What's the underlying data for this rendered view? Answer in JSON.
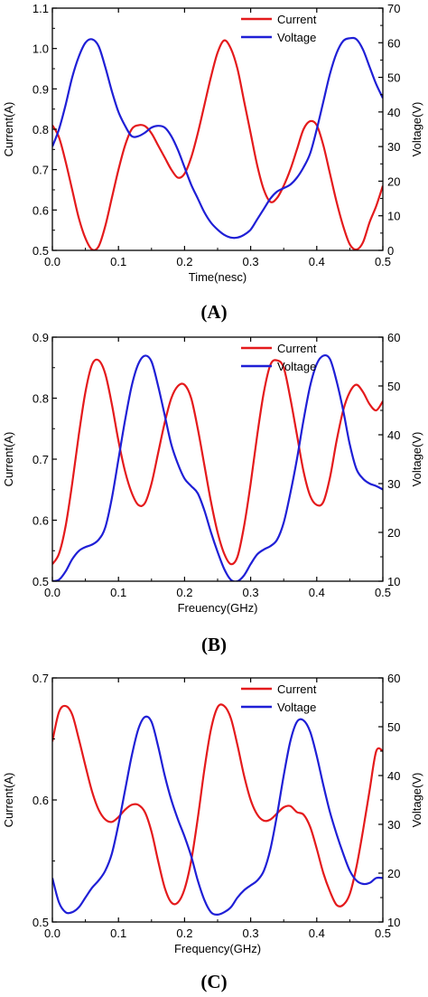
{
  "colors": {
    "current": "#e41a1c",
    "voltage": "#1f1fd6",
    "axis": "#000000"
  },
  "chart_data": [
    {
      "type": "line",
      "panel_label": "(A)",
      "xlabel": "Time(nesc)",
      "ylabel_left": "Current(A)",
      "ylabel_right": "Voltage(V)",
      "xlim": [
        0,
        0.5
      ],
      "ylim_left": [
        0.5,
        1.1
      ],
      "ylim_right": [
        0,
        70
      ],
      "x_ticks": [
        0.0,
        0.1,
        0.2,
        0.3,
        0.4,
        0.5
      ],
      "y_ticks_left": [
        0.5,
        0.6,
        0.7,
        0.8,
        0.9,
        1.0,
        1.1
      ],
      "y_ticks_right": [
        0,
        10,
        20,
        30,
        40,
        50,
        60,
        70
      ],
      "grid": false,
      "legend": "top-right",
      "series": [
        {
          "name": "Current",
          "axis": "left",
          "color": "#e41a1c",
          "x": [
            0.0,
            0.01,
            0.02,
            0.03,
            0.04,
            0.05,
            0.06,
            0.07,
            0.08,
            0.09,
            0.1,
            0.11,
            0.12,
            0.13,
            0.14,
            0.15,
            0.16,
            0.17,
            0.18,
            0.19,
            0.2,
            0.21,
            0.22,
            0.23,
            0.24,
            0.25,
            0.26,
            0.27,
            0.28,
            0.29,
            0.3,
            0.31,
            0.32,
            0.33,
            0.34,
            0.35,
            0.36,
            0.37,
            0.38,
            0.39,
            0.4,
            0.41,
            0.42,
            0.43,
            0.44,
            0.45,
            0.46,
            0.47,
            0.48,
            0.49,
            0.5
          ],
          "y": [
            0.81,
            0.78,
            0.72,
            0.65,
            0.58,
            0.53,
            0.502,
            0.51,
            0.56,
            0.63,
            0.7,
            0.76,
            0.8,
            0.81,
            0.808,
            0.79,
            0.76,
            0.73,
            0.7,
            0.68,
            0.69,
            0.73,
            0.79,
            0.86,
            0.93,
            0.99,
            1.02,
            1.0,
            0.95,
            0.87,
            0.79,
            0.71,
            0.65,
            0.62,
            0.63,
            0.66,
            0.7,
            0.75,
            0.8,
            0.82,
            0.81,
            0.76,
            0.69,
            0.62,
            0.56,
            0.515,
            0.502,
            0.52,
            0.57,
            0.61,
            0.66
          ]
        },
        {
          "name": "Voltage",
          "axis": "right",
          "color": "#1f1fd6",
          "x": [
            0.0,
            0.01,
            0.02,
            0.03,
            0.04,
            0.05,
            0.06,
            0.07,
            0.08,
            0.09,
            0.1,
            0.11,
            0.12,
            0.13,
            0.14,
            0.15,
            0.16,
            0.17,
            0.18,
            0.19,
            0.2,
            0.21,
            0.22,
            0.23,
            0.24,
            0.25,
            0.26,
            0.27,
            0.28,
            0.29,
            0.3,
            0.31,
            0.32,
            0.33,
            0.34,
            0.35,
            0.36,
            0.37,
            0.38,
            0.39,
            0.4,
            0.41,
            0.42,
            0.43,
            0.44,
            0.45,
            0.46,
            0.47,
            0.48,
            0.49,
            0.5
          ],
          "y": [
            30,
            35,
            42,
            50,
            56,
            60,
            61,
            59,
            53,
            46,
            40,
            36,
            33,
            33,
            34,
            35.5,
            36,
            35.5,
            33,
            29,
            24,
            19,
            15,
            11,
            8,
            6,
            4.5,
            3.7,
            3.7,
            4.5,
            6,
            9,
            12,
            15,
            17,
            18,
            19,
            21,
            24,
            28,
            35,
            43,
            51,
            57,
            60.5,
            61.3,
            61,
            58,
            53,
            48,
            44
          ]
        }
      ]
    },
    {
      "type": "line",
      "panel_label": "(B)",
      "xlabel": "Freuency(GHz)",
      "ylabel_left": "Current(A)",
      "ylabel_right": "Voltage(V)",
      "xlim": [
        0,
        0.5
      ],
      "ylim_left": [
        0.5,
        0.9
      ],
      "ylim_right": [
        10,
        60
      ],
      "x_ticks": [
        0.0,
        0.1,
        0.2,
        0.3,
        0.4,
        0.5
      ],
      "y_ticks_left": [
        0.5,
        0.6,
        0.7,
        0.8,
        0.9
      ],
      "y_ticks_right": [
        10,
        20,
        30,
        40,
        50,
        60
      ],
      "grid": false,
      "legend": "top-right",
      "series": [
        {
          "name": "Current",
          "axis": "left",
          "color": "#e41a1c",
          "x": [
            0.0,
            0.01,
            0.02,
            0.03,
            0.04,
            0.05,
            0.06,
            0.07,
            0.08,
            0.09,
            0.1,
            0.11,
            0.12,
            0.13,
            0.14,
            0.15,
            0.16,
            0.17,
            0.18,
            0.19,
            0.2,
            0.21,
            0.22,
            0.23,
            0.24,
            0.25,
            0.26,
            0.27,
            0.28,
            0.29,
            0.3,
            0.31,
            0.32,
            0.33,
            0.34,
            0.35,
            0.36,
            0.37,
            0.38,
            0.39,
            0.4,
            0.41,
            0.42,
            0.43,
            0.44,
            0.45,
            0.46,
            0.47,
            0.48,
            0.49,
            0.5
          ],
          "y": [
            0.528,
            0.545,
            0.59,
            0.66,
            0.74,
            0.81,
            0.855,
            0.862,
            0.84,
            0.79,
            0.73,
            0.68,
            0.645,
            0.625,
            0.628,
            0.66,
            0.71,
            0.76,
            0.8,
            0.82,
            0.822,
            0.8,
            0.75,
            0.69,
            0.63,
            0.58,
            0.545,
            0.528,
            0.54,
            0.59,
            0.66,
            0.74,
            0.81,
            0.855,
            0.862,
            0.85,
            0.8,
            0.74,
            0.68,
            0.64,
            0.625,
            0.63,
            0.67,
            0.73,
            0.78,
            0.81,
            0.822,
            0.81,
            0.79,
            0.78,
            0.795
          ]
        },
        {
          "name": "Voltage",
          "axis": "right",
          "color": "#1f1fd6",
          "x": [
            0.0,
            0.01,
            0.02,
            0.03,
            0.04,
            0.05,
            0.06,
            0.07,
            0.08,
            0.09,
            0.1,
            0.11,
            0.12,
            0.13,
            0.14,
            0.15,
            0.16,
            0.17,
            0.18,
            0.19,
            0.2,
            0.21,
            0.22,
            0.23,
            0.24,
            0.25,
            0.26,
            0.27,
            0.28,
            0.29,
            0.3,
            0.31,
            0.32,
            0.33,
            0.34,
            0.35,
            0.36,
            0.37,
            0.38,
            0.39,
            0.4,
            0.41,
            0.42,
            0.43,
            0.44,
            0.45,
            0.46,
            0.47,
            0.48,
            0.49,
            0.5
          ],
          "y": [
            10,
            10.3,
            12,
            14.5,
            16.2,
            17,
            17.5,
            18.5,
            21,
            27,
            35,
            43,
            50,
            54.5,
            56.2,
            55,
            50,
            44,
            38,
            34,
            31,
            29.5,
            28,
            24.5,
            20,
            16,
            12.5,
            10.3,
            10,
            11.2,
            13.5,
            15.5,
            16.5,
            17.2,
            18.5,
            22,
            28,
            35,
            43,
            50,
            54.5,
            56.2,
            55.5,
            51,
            45,
            38,
            33,
            31,
            30,
            29.5,
            28.8
          ]
        }
      ]
    },
    {
      "type": "line",
      "panel_label": "(C)",
      "xlabel": "Frequency(GHz)",
      "ylabel_left": "Current(A)",
      "ylabel_right": "Voltage(V)",
      "xlim": [
        0,
        0.5
      ],
      "ylim_left": [
        0.5,
        0.7
      ],
      "ylim_right": [
        10,
        60
      ],
      "x_ticks": [
        0.0,
        0.1,
        0.2,
        0.3,
        0.4,
        0.5
      ],
      "y_ticks_left": [
        0.5,
        0.6,
        0.7
      ],
      "y_ticks_right": [
        10,
        20,
        30,
        40,
        50,
        60
      ],
      "grid": false,
      "legend": "top-right",
      "series": [
        {
          "name": "Current",
          "axis": "left",
          "color": "#e41a1c",
          "x": [
            0.0,
            0.01,
            0.02,
            0.03,
            0.04,
            0.05,
            0.06,
            0.07,
            0.08,
            0.09,
            0.1,
            0.11,
            0.12,
            0.13,
            0.14,
            0.15,
            0.16,
            0.17,
            0.18,
            0.19,
            0.2,
            0.21,
            0.22,
            0.23,
            0.24,
            0.25,
            0.26,
            0.27,
            0.28,
            0.29,
            0.3,
            0.31,
            0.32,
            0.33,
            0.34,
            0.35,
            0.36,
            0.37,
            0.38,
            0.39,
            0.4,
            0.41,
            0.42,
            0.43,
            0.44,
            0.45,
            0.46,
            0.47,
            0.48,
            0.49,
            0.5
          ],
          "y": [
            0.648,
            0.672,
            0.677,
            0.67,
            0.65,
            0.628,
            0.607,
            0.592,
            0.584,
            0.582,
            0.586,
            0.592,
            0.596,
            0.596,
            0.59,
            0.574,
            0.55,
            0.528,
            0.516,
            0.516,
            0.527,
            0.55,
            0.585,
            0.625,
            0.658,
            0.676,
            0.677,
            0.667,
            0.645,
            0.62,
            0.6,
            0.588,
            0.583,
            0.584,
            0.589,
            0.594,
            0.595,
            0.59,
            0.588,
            0.578,
            0.56,
            0.54,
            0.525,
            0.514,
            0.514,
            0.523,
            0.545,
            0.575,
            0.608,
            0.64,
            0.64
          ]
        },
        {
          "name": "Voltage",
          "axis": "right",
          "color": "#1f1fd6",
          "x": [
            0.0,
            0.01,
            0.02,
            0.03,
            0.04,
            0.05,
            0.06,
            0.07,
            0.08,
            0.09,
            0.1,
            0.11,
            0.12,
            0.13,
            0.14,
            0.15,
            0.16,
            0.17,
            0.18,
            0.19,
            0.2,
            0.21,
            0.22,
            0.23,
            0.24,
            0.25,
            0.26,
            0.27,
            0.28,
            0.29,
            0.3,
            0.31,
            0.32,
            0.33,
            0.34,
            0.35,
            0.36,
            0.37,
            0.38,
            0.39,
            0.4,
            0.41,
            0.42,
            0.43,
            0.44,
            0.45,
            0.46,
            0.47,
            0.48,
            0.49,
            0.5
          ],
          "y": [
            19,
            14,
            12,
            12,
            13,
            15,
            17,
            18.5,
            20.5,
            24,
            30,
            37,
            44,
            49.5,
            52,
            51,
            46,
            40,
            35,
            31,
            27.5,
            23.5,
            18.5,
            14.5,
            12,
            11.5,
            12,
            13,
            15,
            16.5,
            17.5,
            18.5,
            20.5,
            25,
            32,
            40,
            47,
            51,
            51.3,
            49,
            44,
            38,
            32.5,
            28,
            24,
            20.5,
            18.5,
            17.8,
            18,
            19,
            19
          ]
        }
      ]
    }
  ]
}
